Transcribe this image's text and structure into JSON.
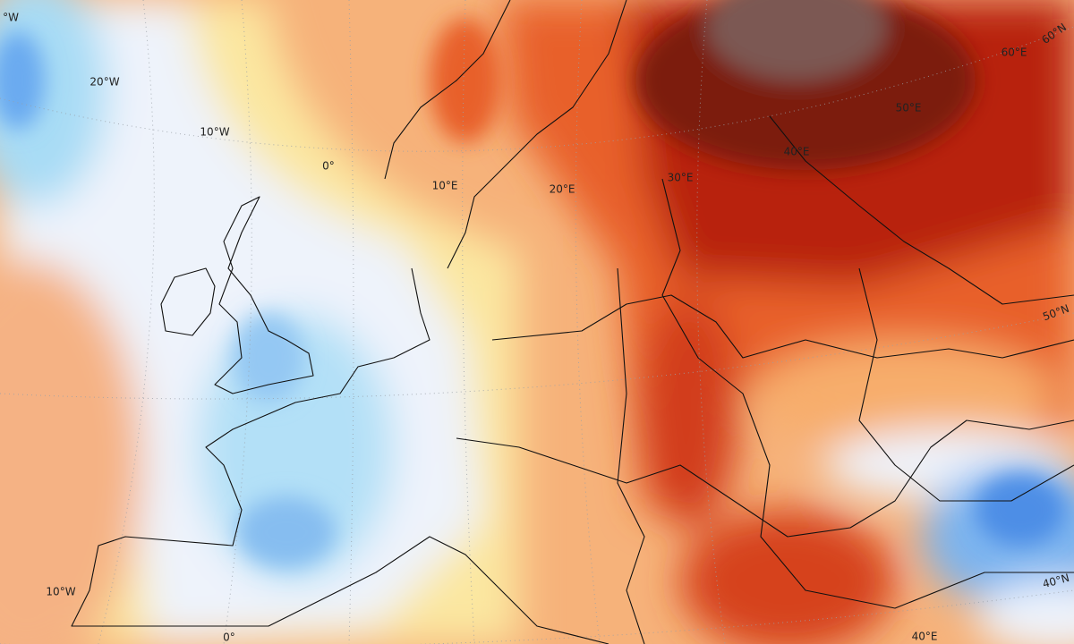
{
  "map": {
    "longitude_labels": [
      "°W",
      "20°W",
      "10°W",
      "0°",
      "10°E",
      "20°E",
      "30°E",
      "40°E",
      "50°E",
      "60°E"
    ],
    "latitude_labels": [
      "60°N",
      "50°N",
      "40°N"
    ],
    "bottom_labels": [
      "10°W",
      "0°",
      "40°E"
    ]
  }
}
